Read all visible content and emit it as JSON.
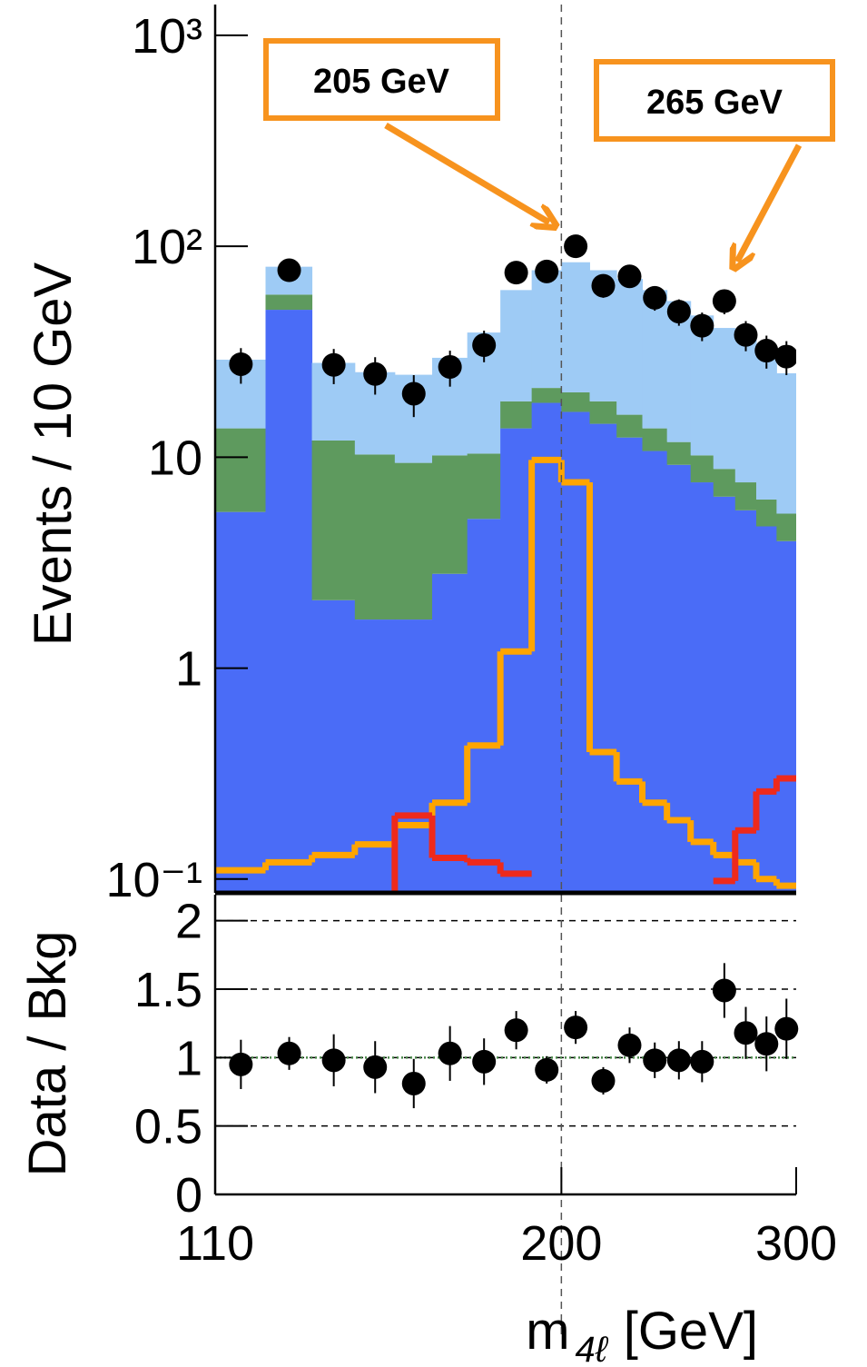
{
  "chart_data": [
    {
      "type": "histogram",
      "log_x": true,
      "log_y": true,
      "bins": [
        110,
        120,
        130,
        140,
        150,
        160,
        170,
        180,
        190,
        200,
        210,
        220,
        230,
        240,
        250,
        260,
        270,
        280,
        290,
        300
      ],
      "xlim": [
        110,
        300
      ],
      "ylim": [
        0.086,
        1400
      ],
      "yticks": [
        {
          "value": 1000,
          "label": "10³"
        },
        {
          "value": 100,
          "label": "10²"
        },
        10,
        1,
        {
          "value": 0.1,
          "label": "10⁻¹"
        }
      ],
      "ylabel": "Events / 10 GeV",
      "series": [
        {
          "color": "#4a6cf7",
          "values": [
            5.5,
            50,
            2.1,
            1.7,
            1.7,
            2.8,
            5.1,
            13.7,
            18.1,
            16.4,
            14.4,
            12.4,
            10.7,
            9.2,
            7.6,
            6.5,
            5.6,
            4.7,
            4.0
          ]
        },
        {
          "color": "#5e9a5e",
          "values": [
            8.2,
            9,
            9.9,
            8.6,
            7.7,
            7.4,
            5.3,
            4.7,
            3.2,
            3.9,
            4.0,
            3.5,
            3.0,
            2.6,
            2.6,
            2.3,
            2.0,
            1.6,
            1.4
          ]
        },
        {
          "color": "#9ecbf5",
          "values": [
            15.3,
            21,
            16,
            15,
            15.2,
            19.4,
            28.6,
            43.6,
            55.7,
            63.7,
            58.6,
            54.1,
            48.3,
            43.2,
            36.8,
            32.2,
            29.4,
            25.7,
            19.6
          ]
        }
      ],
      "lines": [
        {
          "color": "#ffa500",
          "values": [
            0.11,
            0.12,
            0.13,
            0.146,
            0.18,
            0.23,
            0.43,
            1.2,
            9.7,
            7.6,
            0.4,
            0.29,
            0.23,
            0.19,
            0.15,
            0.13,
            0.12,
            0.1,
            0.093
          ]
        },
        {
          "color": "#ee2a1c",
          "values": [
            null,
            null,
            null,
            0.085,
            0.2,
            0.126,
            0.12,
            0.106,
            null,
            null,
            null,
            null,
            null,
            null,
            null,
            0.098,
            0.17,
            0.26,
            0.3
          ]
        }
      ],
      "points": {
        "color": "#000000",
        "x": [
          115,
          125,
          135,
          145,
          155,
          165,
          175,
          185,
          195,
          205,
          215,
          225,
          235,
          245,
          255,
          265,
          275,
          285,
          295
        ],
        "values": [
          27.6,
          77,
          27.4,
          24.8,
          20,
          26.8,
          34,
          75,
          76,
          100,
          65,
          72,
          57,
          49,
          42,
          55,
          38,
          32,
          30
        ],
        "errors": [
          5.3,
          8.8,
          5.2,
          5,
          4.5,
          5.2,
          5.8,
          8.7,
          8.7,
          10,
          8,
          8.5,
          7.5,
          7,
          6.5,
          7.4,
          6.2,
          5.7,
          5.5
        ]
      },
      "vline": 200,
      "annotations": [
        {
          "text": "205 GeV",
          "color": "#f7931e"
        },
        {
          "text": "265 GeV",
          "color": "#f7931e"
        }
      ]
    },
    {
      "type": "scatter",
      "log_x": true,
      "xlim": [
        110,
        300
      ],
      "xticks": [
        110,
        200,
        300
      ],
      "xlabel": [
        "m",
        "4ℓ",
        "[GeV]"
      ],
      "ylim": [
        0,
        2.19
      ],
      "yticks": [
        0,
        0.5,
        1,
        1.5,
        2
      ],
      "ylabel": "Data / Bkg",
      "grid": true,
      "refline": 1,
      "vline": 200,
      "color": "#000000",
      "x": [
        115,
        125,
        135,
        145,
        155,
        165,
        175,
        185,
        195,
        205,
        215,
        225,
        235,
        245,
        255,
        265,
        275,
        285,
        295
      ],
      "values": [
        0.95,
        1.03,
        0.98,
        0.93,
        0.81,
        1.03,
        0.97,
        1.2,
        0.91,
        1.22,
        0.83,
        1.09,
        0.98,
        0.98,
        0.97,
        1.49,
        1.18,
        1.1,
        1.21
      ],
      "errors": [
        0.18,
        0.12,
        0.19,
        0.19,
        0.18,
        0.2,
        0.17,
        0.14,
        0.1,
        0.12,
        0.1,
        0.13,
        0.13,
        0.14,
        0.15,
        0.2,
        0.19,
        0.2,
        0.22
      ]
    }
  ]
}
